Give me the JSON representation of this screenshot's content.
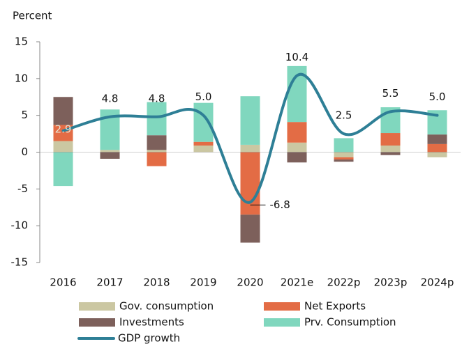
{
  "chart_data": {
    "type": "stacked_bar_line",
    "y_label": "Percent",
    "categories": [
      "2016",
      "2017",
      "2018",
      "2019",
      "2020",
      "2021e",
      "2022p",
      "2023p",
      "2024p"
    ],
    "series": [
      {
        "name": "Gov. consumption",
        "color": "#cbc7a2",
        "values": [
          1.5,
          0.3,
          0.3,
          0.9,
          1.0,
          1.3,
          -0.7,
          0.9,
          -0.7
        ]
      },
      {
        "name": "Net Exports",
        "color": "#e36c45",
        "values": [
          2.2,
          0,
          -1.9,
          0.5,
          -8.5,
          2.8,
          -0.3,
          1.7,
          1.1
        ]
      },
      {
        "name": "Investments",
        "color": "#7d605b",
        "values": [
          3.8,
          -0.9,
          2.0,
          0,
          -3.8,
          -1.4,
          -0.3,
          -0.4,
          1.3
        ]
      },
      {
        "name": "Prv. Consumption",
        "color": "#80d7be",
        "values": [
          -4.6,
          5.5,
          4.5,
          5.3,
          6.6,
          7.6,
          1.9,
          3.5,
          3.3
        ]
      },
      {
        "name": "GDP growth",
        "color": "#2e7f96",
        "type": "line",
        "values": [
          2.9,
          4.8,
          4.8,
          5.0,
          -6.8,
          10.4,
          2.5,
          5.5,
          5.0
        ],
        "value_labels": [
          "2.9",
          "4.8",
          "4.8",
          "5.0",
          "-6.8",
          "10.4",
          "2.5",
          "5.5",
          "5.0"
        ]
      }
    ],
    "ylim": [
      -15,
      15
    ],
    "yticks": [
      -15,
      -10,
      -5,
      0,
      5,
      10,
      15
    ],
    "grid": false
  }
}
